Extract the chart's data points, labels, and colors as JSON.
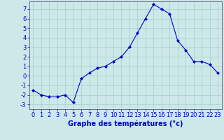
{
  "hours": [
    0,
    1,
    2,
    3,
    4,
    5,
    6,
    7,
    8,
    9,
    10,
    11,
    12,
    13,
    14,
    15,
    16,
    17,
    18,
    19,
    20,
    21,
    22,
    23
  ],
  "temperatures": [
    -1.5,
    -2.0,
    -2.2,
    -2.2,
    -2.0,
    -2.8,
    -0.3,
    0.3,
    0.8,
    1.0,
    1.5,
    2.0,
    3.0,
    4.5,
    6.0,
    7.5,
    7.0,
    6.5,
    3.7,
    2.7,
    1.5,
    1.5,
    1.2,
    0.3
  ],
  "line_color": "#0000cc",
  "marker": "D",
  "marker_size": 2,
  "bg_color": "#cce8e8",
  "grid_color": "#aacccc",
  "xlabel": "Graphe des températures (°c)",
  "xlabel_color": "#0000cc",
  "xlabel_fontsize": 7,
  "tick_color": "#0000cc",
  "tick_fontsize": 6,
  "ylim": [
    -3.5,
    7.8
  ],
  "yticks": [
    -3,
    -2,
    -1,
    0,
    1,
    2,
    3,
    4,
    5,
    6,
    7
  ],
  "xticks": [
    0,
    1,
    2,
    3,
    4,
    5,
    6,
    7,
    8,
    9,
    10,
    11,
    12,
    13,
    14,
    15,
    16,
    17,
    18,
    19,
    20,
    21,
    22,
    23
  ],
  "xlim": [
    -0.5,
    23.5
  ]
}
